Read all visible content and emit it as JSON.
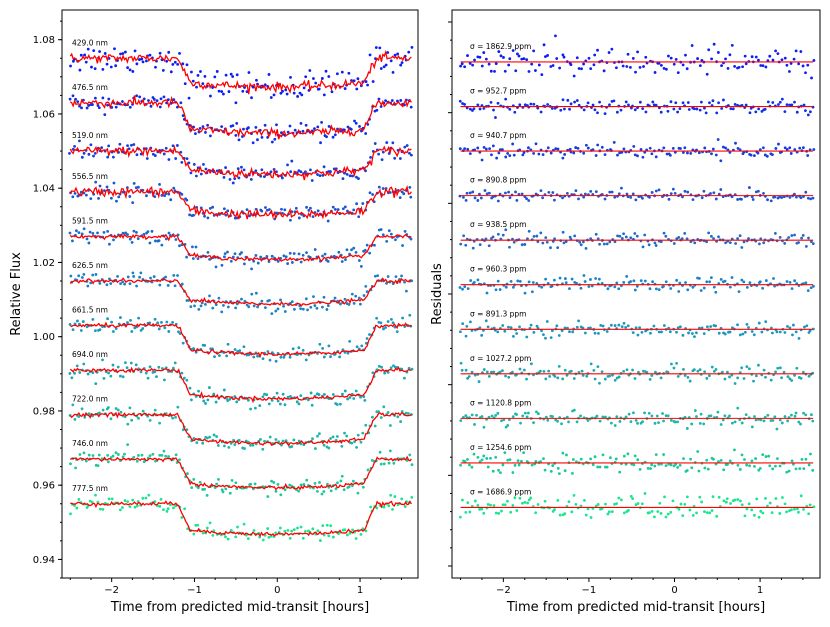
{
  "chart_data": [
    {
      "type": "scatter",
      "panel": "light-curves",
      "xlabel": "Time from predicted mid-transit [hours]",
      "ylabel": "Relative Flux",
      "xlim": [
        -2.6,
        1.7
      ],
      "ylim": [
        0.935,
        1.088
      ],
      "xticks": [
        -2,
        -1,
        0,
        1
      ],
      "xtick_labels": [
        "−2",
        "−1",
        "0",
        "1"
      ],
      "yticks": [
        0.94,
        0.96,
        0.98,
        1.0,
        1.02,
        1.04,
        1.06,
        1.08
      ],
      "ytick_labels": [
        "0.94",
        "0.96",
        "0.98",
        "1.00",
        "1.02",
        "1.04",
        "1.06",
        "1.08"
      ],
      "transit": {
        "ingress_start": -1.2,
        "ingress_end": -1.05,
        "egress_start": 1.05,
        "egress_end": 1.2
      },
      "model_color": "#ff0000",
      "series": [
        {
          "name": "429.0 nm",
          "offset": 1.075,
          "depth": 0.0065,
          "color": "#0a1ef5"
        },
        {
          "name": "476.5 nm",
          "offset": 1.063,
          "depth": 0.007,
          "color": "#0d2ee8"
        },
        {
          "name": "519.0 nm",
          "offset": 1.05,
          "depth": 0.005,
          "color": "#123fdc"
        },
        {
          "name": "556.5 nm",
          "offset": 1.039,
          "depth": 0.005,
          "color": "#1a55d2"
        },
        {
          "name": "591.5 nm",
          "offset": 1.027,
          "depth": 0.005,
          "color": "#1a6ccc"
        },
        {
          "name": "626.5 nm",
          "offset": 1.015,
          "depth": 0.005,
          "color": "#1a82c6"
        },
        {
          "name": "661.5 nm",
          "offset": 1.003,
          "depth": 0.0065,
          "color": "#1a97bf"
        },
        {
          "name": "694.0 nm",
          "offset": 0.991,
          "depth": 0.0065,
          "color": "#1aa9b3"
        },
        {
          "name": "722.0 nm",
          "offset": 0.979,
          "depth": 0.0065,
          "color": "#1ab8a8"
        },
        {
          "name": "746.0 nm",
          "offset": 0.967,
          "depth": 0.0065,
          "color": "#1ac89c"
        },
        {
          "name": "777.5 nm",
          "offset": 0.955,
          "depth": 0.007,
          "color": "#1ce58f"
        }
      ]
    },
    {
      "type": "scatter",
      "panel": "residuals",
      "xlabel": "Time from predicted mid-transit [hours]",
      "ylabel": "Residuals",
      "xlim": [
        -2.6,
        1.7
      ],
      "ylim": [
        0.935,
        1.088
      ],
      "xticks": [
        -2,
        -1,
        0,
        1
      ],
      "xtick_labels": [
        "−2",
        "−1",
        "0",
        "1"
      ],
      "line_color": "#ff0000",
      "series": [
        {
          "name": "σ = 1862.9 ppm",
          "offset": 1.074,
          "scatter": 0.00186
        },
        {
          "name": "σ = 952.7 ppm",
          "offset": 1.062,
          "scatter": 0.00095
        },
        {
          "name": "σ = 940.7 ppm",
          "offset": 1.05,
          "scatter": 0.00094
        },
        {
          "name": "σ = 890.8 ppm",
          "offset": 1.038,
          "scatter": 0.00089
        },
        {
          "name": "σ = 938.5 ppm",
          "offset": 1.026,
          "scatter": 0.00094
        },
        {
          "name": "σ = 960.3 ppm",
          "offset": 1.014,
          "scatter": 0.00096
        },
        {
          "name": "σ = 891.3 ppm",
          "offset": 1.002,
          "scatter": 0.00089
        },
        {
          "name": "σ = 1027.2 ppm",
          "offset": 0.99,
          "scatter": 0.00103
        },
        {
          "name": "σ = 1120.8 ppm",
          "offset": 0.978,
          "scatter": 0.00112
        },
        {
          "name": "σ = 1254.6 ppm",
          "offset": 0.966,
          "scatter": 0.00125
        },
        {
          "name": "σ = 1686.9 ppm",
          "offset": 0.954,
          "scatter": 0.00169
        }
      ]
    }
  ]
}
